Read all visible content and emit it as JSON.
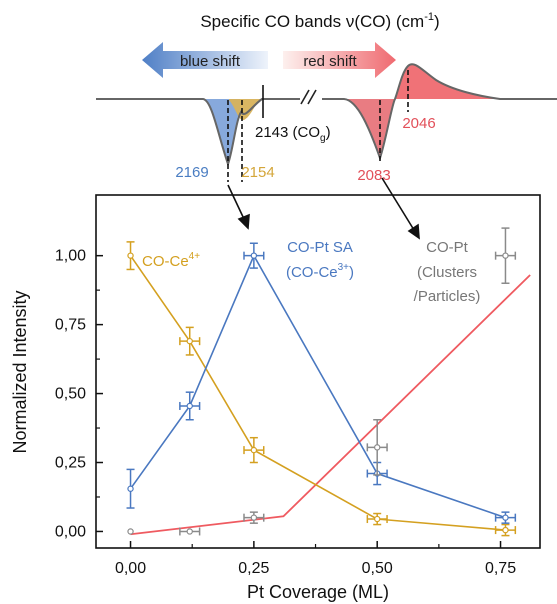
{
  "header": {
    "title": "Specific CO bands ν(CO) (cm",
    "title_sup": "-1",
    "title_end": ")",
    "blue_shift_label": "blue shift",
    "red_shift_label": "red shift"
  },
  "spectrum": {
    "peaks": [
      {
        "label": "2169",
        "color": "#4a7dc2"
      },
      {
        "label": "2154",
        "color": "#d4a63a"
      },
      {
        "label": "2083",
        "color": "#e2505a"
      },
      {
        "label": "2046",
        "color": "#e2505a"
      }
    ],
    "gas_label": "2143 (CO",
    "gas_sub": "g",
    "gas_end": ")"
  },
  "chart_data": {
    "type": "line",
    "xlabel": "Pt Coverage (ML)",
    "ylabel": "Normalized Intensity",
    "xlim": [
      -0.07,
      0.83
    ],
    "ylim": [
      -0.06,
      1.22
    ],
    "xticks": [
      "0,00",
      "0,25",
      "0,50",
      "0,75"
    ],
    "xtick_values": [
      0.0,
      0.25,
      0.5,
      0.75
    ],
    "yticks": [
      "0,00",
      "0,25",
      "0,50",
      "0,75",
      "1,00"
    ],
    "ytick_values": [
      0.0,
      0.25,
      0.5,
      0.75,
      1.0
    ],
    "series": [
      {
        "name": "CO-Ce4+",
        "color": "#d4a020",
        "x": [
          0.0,
          0.12,
          0.25,
          0.5,
          0.76
        ],
        "y": [
          1.0,
          0.69,
          0.295,
          0.045,
          0.005
        ],
        "yerr": [
          0.05,
          0.05,
          0.045,
          0.02,
          0.02
        ],
        "xerr": [
          0.0,
          0.02,
          0.02,
          0.02,
          0.02
        ]
      },
      {
        "name": "CO-Pt SA (CO-Ce3+)",
        "color": "#4a78c0",
        "x": [
          0.0,
          0.12,
          0.25,
          0.5,
          0.76
        ],
        "y": [
          0.155,
          0.455,
          1.0,
          0.21,
          0.05
        ],
        "yerr": [
          0.07,
          0.05,
          0.045,
          0.04,
          0.02
        ],
        "xerr": [
          0.0,
          0.02,
          0.02,
          0.02,
          0.02
        ]
      },
      {
        "name": "CO-Pt (Clusters /Particles)",
        "color": "#8a8a8a",
        "x": [
          0.0,
          0.12,
          0.25,
          0.5,
          0.76
        ],
        "y": [
          0.0,
          0.0,
          0.05,
          0.305,
          1.0
        ],
        "yerr": [
          0.0,
          0.0,
          0.02,
          0.1,
          0.1
        ],
        "xerr": [
          0.0,
          0.02,
          0.02,
          0.02,
          0.02
        ]
      }
    ],
    "fit_line": {
      "color": "#ef5a60",
      "x": [
        0.0,
        0.31,
        0.81
      ],
      "y": [
        -0.01,
        0.055,
        0.93
      ]
    },
    "labels": {
      "ce4": {
        "text": "CO-Ce",
        "sup": "4+"
      },
      "ptsa_1": "CO-Pt SA",
      "ptsa_2": "(CO-Ce",
      "ptsa_2_sup": "3+",
      "ptsa_2_end": ")",
      "ptcl_1": "CO-Pt",
      "ptcl_2": "(Clusters",
      "ptcl_3": "/Particles)"
    }
  }
}
